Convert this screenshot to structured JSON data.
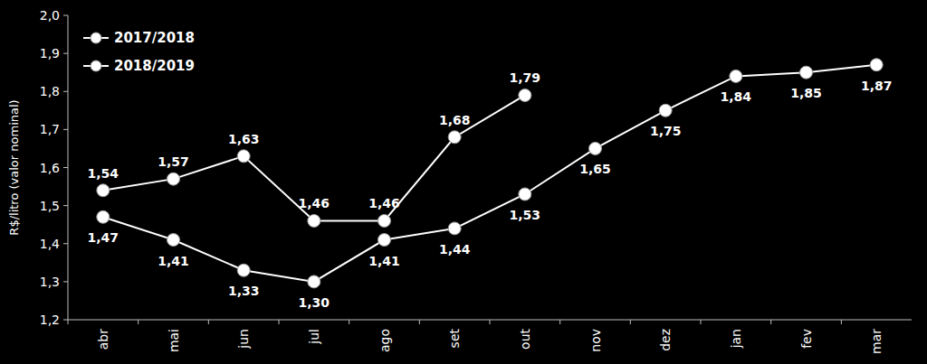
{
  "chart_data": {
    "type": "line",
    "y_label": "R$/litro (valor nominal)",
    "categories": [
      "abr",
      "mai",
      "jun",
      "jul",
      "ago",
      "set",
      "out",
      "nov",
      "dez",
      "jan",
      "fev",
      "mar"
    ],
    "series": [
      {
        "name": "2017/2018",
        "color": "#ffffff",
        "marker": "circle",
        "values": [
          1.47,
          1.41,
          1.33,
          1.3,
          1.41,
          1.44,
          1.53,
          1.65,
          1.75,
          1.84,
          1.85,
          1.87
        ],
        "value_labels": [
          "1,47",
          "1,41",
          "1,33",
          "1,30",
          "1,41",
          "1,44",
          "1,53",
          "1,65",
          "1,75",
          "1,84",
          "1,85",
          "1,87"
        ]
      },
      {
        "name": "2018/2019",
        "color": "#ffffff",
        "marker": "circle",
        "values": [
          1.54,
          1.57,
          1.63,
          1.46,
          1.46,
          1.68,
          1.79,
          null,
          null,
          null,
          null,
          null
        ],
        "value_labels": [
          "1,54",
          "1,57",
          "1,63",
          "1,46",
          "1,46",
          "1,68",
          "1,79",
          null,
          null,
          null,
          null,
          null
        ]
      }
    ],
    "ylim": [
      1.2,
      2.0
    ],
    "yticks": [
      {
        "value": 1.2,
        "label": "1,2"
      },
      {
        "value": 1.3,
        "label": "1,3"
      },
      {
        "value": 1.4,
        "label": "1,4"
      },
      {
        "value": 1.5,
        "label": "1,5"
      },
      {
        "value": 1.6,
        "label": "1,6"
      },
      {
        "value": 1.7,
        "label": "1,7"
      },
      {
        "value": 1.8,
        "label": "1,8"
      },
      {
        "value": 1.9,
        "label": "1,9"
      },
      {
        "value": 2.0,
        "label": "2,0"
      }
    ],
    "grid": false,
    "legend": "top-left",
    "data_labels": true
  }
}
